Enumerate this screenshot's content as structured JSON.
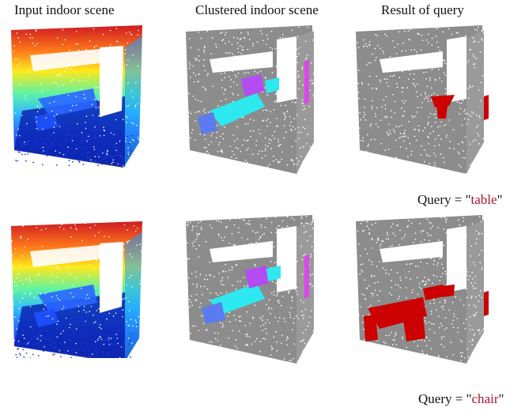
{
  "columns": {
    "input": "Input indoor scene",
    "clustered": "Clustered indoor scene",
    "result": "Result of query"
  },
  "queries": [
    {
      "prefix": "Query = \"",
      "keyword": "table",
      "suffix": "\""
    },
    {
      "prefix": "Query = \"",
      "keyword": "chair",
      "suffix": "\""
    }
  ],
  "colors": {
    "gray": "#8c8c8c",
    "highlight": "#cc0000",
    "cluster_cyan": "#2ee8f0",
    "cluster_blue": "#5a7cf0",
    "cluster_purple": "#b44cf2",
    "cluster_magenta": "#e23ef2",
    "query_keyword": "#b0122c"
  },
  "icons": [
    "point-cloud-input-render",
    "point-cloud-clustered-render",
    "point-cloud-query-render"
  ]
}
